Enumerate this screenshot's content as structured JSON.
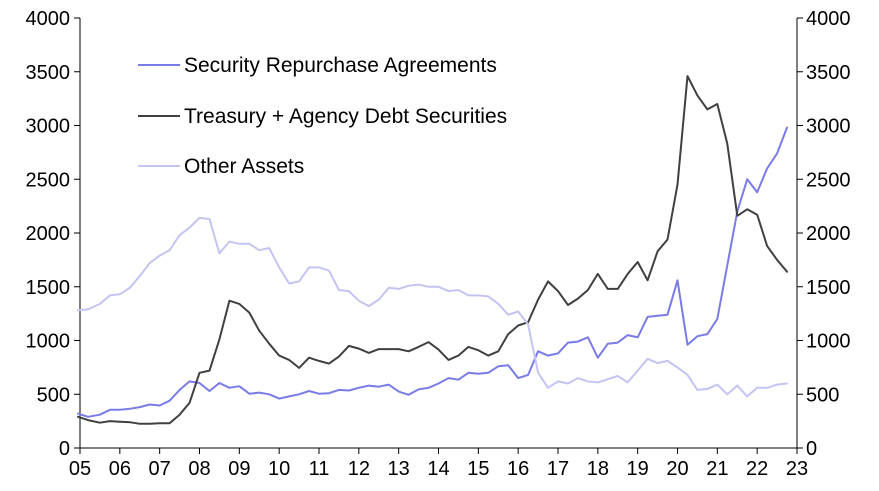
{
  "chart_data": {
    "type": "line",
    "title": "",
    "xlabel": "",
    "ylabel": "",
    "ylim": [
      0,
      4000
    ],
    "y_ticks": [
      "0",
      "500",
      "1000",
      "1500",
      "2000",
      "2500",
      "3000",
      "3500",
      "4000"
    ],
    "y2_ticks": [
      "0",
      "500",
      "1000",
      "1500",
      "2000",
      "2500",
      "3000",
      "3500",
      "4000"
    ],
    "x_range": [
      2005,
      2023
    ],
    "x_ticks": [
      "05",
      "06",
      "07",
      "08",
      "09",
      "10",
      "11",
      "12",
      "13",
      "14",
      "15",
      "16",
      "17",
      "18",
      "19",
      "20",
      "21",
      "22",
      "23"
    ],
    "grid": false,
    "legend_position": "top-left",
    "series": [
      {
        "name": "Security Repurchase Agreements",
        "color": "#7b7be8",
        "points": [
          [
            2004.95,
            320
          ],
          [
            2005.2,
            290
          ],
          [
            2005.5,
            310
          ],
          [
            2005.75,
            355
          ],
          [
            2006.0,
            355
          ],
          [
            2006.25,
            365
          ],
          [
            2006.5,
            380
          ],
          [
            2006.75,
            405
          ],
          [
            2007.0,
            395
          ],
          [
            2007.25,
            440
          ],
          [
            2007.5,
            540
          ],
          [
            2007.75,
            620
          ],
          [
            2008.0,
            605
          ],
          [
            2008.25,
            530
          ],
          [
            2008.5,
            605
          ],
          [
            2008.75,
            560
          ],
          [
            2009.0,
            575
          ],
          [
            2009.25,
            505
          ],
          [
            2009.5,
            515
          ],
          [
            2009.75,
            500
          ],
          [
            2010.0,
            460
          ],
          [
            2010.25,
            480
          ],
          [
            2010.5,
            500
          ],
          [
            2010.75,
            530
          ],
          [
            2011.0,
            505
          ],
          [
            2011.25,
            510
          ],
          [
            2011.5,
            540
          ],
          [
            2011.75,
            535
          ],
          [
            2012.0,
            560
          ],
          [
            2012.25,
            580
          ],
          [
            2012.5,
            570
          ],
          [
            2012.75,
            590
          ],
          [
            2013.0,
            525
          ],
          [
            2013.25,
            495
          ],
          [
            2013.5,
            545
          ],
          [
            2013.75,
            560
          ],
          [
            2014.0,
            600
          ],
          [
            2014.25,
            650
          ],
          [
            2014.5,
            635
          ],
          [
            2014.75,
            700
          ],
          [
            2015.0,
            690
          ],
          [
            2015.25,
            700
          ],
          [
            2015.5,
            760
          ],
          [
            2015.75,
            770
          ],
          [
            2016.0,
            650
          ],
          [
            2016.25,
            680
          ],
          [
            2016.5,
            900
          ],
          [
            2016.75,
            860
          ],
          [
            2017.0,
            880
          ],
          [
            2017.25,
            980
          ],
          [
            2017.5,
            990
          ],
          [
            2017.75,
            1030
          ],
          [
            2018.0,
            840
          ],
          [
            2018.25,
            970
          ],
          [
            2018.5,
            980
          ],
          [
            2018.75,
            1050
          ],
          [
            2019.0,
            1030
          ],
          [
            2019.25,
            1220
          ],
          [
            2019.5,
            1230
          ],
          [
            2019.75,
            1240
          ],
          [
            2020.0,
            1560
          ],
          [
            2020.25,
            960
          ],
          [
            2020.5,
            1040
          ],
          [
            2020.75,
            1060
          ],
          [
            2021.0,
            1200
          ],
          [
            2021.25,
            1700
          ],
          [
            2021.5,
            2200
          ],
          [
            2021.75,
            2500
          ],
          [
            2022.0,
            2380
          ],
          [
            2022.25,
            2600
          ],
          [
            2022.5,
            2740
          ],
          [
            2022.75,
            2980
          ]
        ]
      },
      {
        "name": "Treasury + Agency Debt Securities",
        "color": "#404040",
        "points": [
          [
            2004.95,
            290
          ],
          [
            2005.2,
            260
          ],
          [
            2005.5,
            235
          ],
          [
            2005.75,
            250
          ],
          [
            2006.0,
            245
          ],
          [
            2006.25,
            240
          ],
          [
            2006.5,
            225
          ],
          [
            2006.75,
            225
          ],
          [
            2007.0,
            230
          ],
          [
            2007.25,
            230
          ],
          [
            2007.5,
            310
          ],
          [
            2007.75,
            420
          ],
          [
            2008.0,
            700
          ],
          [
            2008.25,
            720
          ],
          [
            2008.5,
            1010
          ],
          [
            2008.75,
            1370
          ],
          [
            2009.0,
            1340
          ],
          [
            2009.25,
            1260
          ],
          [
            2009.5,
            1090
          ],
          [
            2009.75,
            970
          ],
          [
            2010.0,
            860
          ],
          [
            2010.25,
            820
          ],
          [
            2010.5,
            745
          ],
          [
            2010.75,
            840
          ],
          [
            2011.0,
            810
          ],
          [
            2011.25,
            785
          ],
          [
            2011.5,
            850
          ],
          [
            2011.75,
            950
          ],
          [
            2012.0,
            925
          ],
          [
            2012.25,
            885
          ],
          [
            2012.5,
            920
          ],
          [
            2012.75,
            920
          ],
          [
            2013.0,
            920
          ],
          [
            2013.25,
            900
          ],
          [
            2013.5,
            940
          ],
          [
            2013.75,
            985
          ],
          [
            2014.0,
            915
          ],
          [
            2014.25,
            820
          ],
          [
            2014.5,
            860
          ],
          [
            2014.75,
            940
          ],
          [
            2015.0,
            910
          ],
          [
            2015.25,
            860
          ],
          [
            2015.5,
            900
          ],
          [
            2015.75,
            1060
          ],
          [
            2016.0,
            1140
          ],
          [
            2016.25,
            1170
          ],
          [
            2016.5,
            1380
          ],
          [
            2016.75,
            1550
          ],
          [
            2017.0,
            1460
          ],
          [
            2017.25,
            1330
          ],
          [
            2017.5,
            1390
          ],
          [
            2017.75,
            1470
          ],
          [
            2018.0,
            1620
          ],
          [
            2018.25,
            1480
          ],
          [
            2018.5,
            1480
          ],
          [
            2018.75,
            1620
          ],
          [
            2019.0,
            1730
          ],
          [
            2019.25,
            1560
          ],
          [
            2019.5,
            1830
          ],
          [
            2019.75,
            1940
          ],
          [
            2020.0,
            2450
          ],
          [
            2020.25,
            3460
          ],
          [
            2020.5,
            3280
          ],
          [
            2020.75,
            3150
          ],
          [
            2021.0,
            3200
          ],
          [
            2021.25,
            2830
          ],
          [
            2021.5,
            2160
          ],
          [
            2021.75,
            2220
          ],
          [
            2022.0,
            2170
          ],
          [
            2022.25,
            1880
          ],
          [
            2022.5,
            1750
          ],
          [
            2022.75,
            1640
          ]
        ]
      },
      {
        "name": "Other Assets",
        "color": "#c4c4f2",
        "points": [
          [
            2004.95,
            1280
          ],
          [
            2005.2,
            1290
          ],
          [
            2005.5,
            1340
          ],
          [
            2005.75,
            1420
          ],
          [
            2006.0,
            1430
          ],
          [
            2006.25,
            1490
          ],
          [
            2006.5,
            1600
          ],
          [
            2006.75,
            1720
          ],
          [
            2007.0,
            1790
          ],
          [
            2007.25,
            1840
          ],
          [
            2007.5,
            1980
          ],
          [
            2007.75,
            2050
          ],
          [
            2008.0,
            2140
          ],
          [
            2008.25,
            2130
          ],
          [
            2008.5,
            1810
          ],
          [
            2008.75,
            1920
          ],
          [
            2009.0,
            1900
          ],
          [
            2009.25,
            1900
          ],
          [
            2009.5,
            1840
          ],
          [
            2009.75,
            1860
          ],
          [
            2010.0,
            1680
          ],
          [
            2010.25,
            1530
          ],
          [
            2010.5,
            1550
          ],
          [
            2010.75,
            1680
          ],
          [
            2011.0,
            1680
          ],
          [
            2011.25,
            1650
          ],
          [
            2011.5,
            1470
          ],
          [
            2011.75,
            1460
          ],
          [
            2012.0,
            1370
          ],
          [
            2012.25,
            1320
          ],
          [
            2012.5,
            1380
          ],
          [
            2012.75,
            1490
          ],
          [
            2013.0,
            1480
          ],
          [
            2013.25,
            1510
          ],
          [
            2013.5,
            1520
          ],
          [
            2013.75,
            1500
          ],
          [
            2014.0,
            1500
          ],
          [
            2014.25,
            1460
          ],
          [
            2014.5,
            1470
          ],
          [
            2014.75,
            1420
          ],
          [
            2015.0,
            1420
          ],
          [
            2015.25,
            1410
          ],
          [
            2015.5,
            1340
          ],
          [
            2015.75,
            1240
          ],
          [
            2016.0,
            1270
          ],
          [
            2016.25,
            1150
          ],
          [
            2016.5,
            700
          ],
          [
            2016.75,
            560
          ],
          [
            2017.0,
            620
          ],
          [
            2017.25,
            600
          ],
          [
            2017.5,
            650
          ],
          [
            2017.75,
            620
          ],
          [
            2018.0,
            610
          ],
          [
            2018.25,
            640
          ],
          [
            2018.5,
            670
          ],
          [
            2018.75,
            610
          ],
          [
            2019.0,
            720
          ],
          [
            2019.25,
            830
          ],
          [
            2019.5,
            790
          ],
          [
            2019.75,
            810
          ],
          [
            2020.0,
            750
          ],
          [
            2020.25,
            680
          ],
          [
            2020.5,
            540
          ],
          [
            2020.75,
            550
          ],
          [
            2021.0,
            590
          ],
          [
            2021.25,
            500
          ],
          [
            2021.5,
            580
          ],
          [
            2021.75,
            480
          ],
          [
            2022.0,
            560
          ],
          [
            2022.25,
            560
          ],
          [
            2022.5,
            590
          ],
          [
            2022.75,
            600
          ]
        ]
      }
    ]
  }
}
